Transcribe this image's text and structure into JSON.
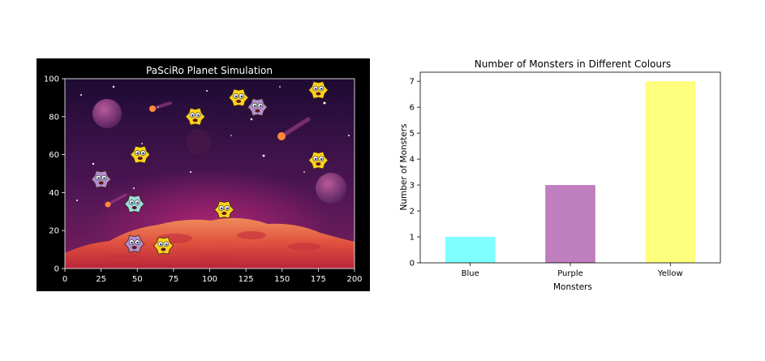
{
  "sim_panel": {
    "title": "PaSciRo Planet Simulation",
    "background": "#000000",
    "text_color": "#ffffff"
  },
  "chart_data": [
    {
      "type": "scatter",
      "title": "PaSciRo Planet Simulation",
      "xlabel": "",
      "ylabel": "",
      "xlim": [
        0,
        200
      ],
      "ylim": [
        0,
        100
      ],
      "xticks": [
        0,
        25,
        50,
        75,
        100,
        125,
        150,
        175,
        200
      ],
      "yticks": [
        0,
        20,
        40,
        60,
        80,
        100
      ],
      "grid": false,
      "background_image": "space-planet-scene",
      "series": [
        {
          "color": "#ffd21e",
          "icon": "yellow-monster-icon",
          "points": [
            [
              175,
              94
            ],
            [
              120,
              90
            ],
            [
              90,
              80
            ],
            [
              52,
              60
            ],
            [
              175,
              57
            ],
            [
              110,
              31
            ],
            [
              68,
              12
            ]
          ]
        },
        {
          "color": "#b48ed0",
          "icon": "purple-monster-icon",
          "points": [
            [
              133,
              85
            ],
            [
              25,
              47
            ],
            [
              48,
              13
            ]
          ]
        },
        {
          "color": "#9fdde0",
          "icon": "blue-monster-icon",
          "points": [
            [
              48,
              34
            ]
          ]
        }
      ]
    },
    {
      "type": "bar",
      "title": "Number of Monsters in Different Colours",
      "xlabel": "Monsters",
      "ylabel": "Number of Monsters",
      "categories": [
        "Blue",
        "Purple",
        "Yellow"
      ],
      "values": [
        1,
        3,
        7
      ],
      "colors": [
        "#7fffff",
        "#bf7fbf",
        "#ffff7f"
      ],
      "ylim": [
        0,
        7.35
      ],
      "yticks": [
        0,
        1,
        2,
        3,
        4,
        5,
        6,
        7
      ],
      "grid": false
    }
  ]
}
